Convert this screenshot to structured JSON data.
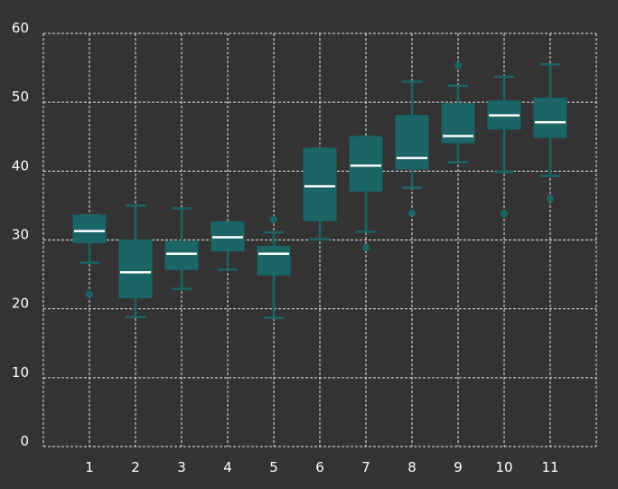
{
  "colors": {
    "background": "#333333",
    "grid": "#e8e8e8",
    "box_fill": "#1b6566",
    "box_stroke": "#1b6566",
    "whisker": "#1b6566",
    "median": "#ffffff",
    "outlier": "#1b6566",
    "text": "#ffffff"
  },
  "chart_data": {
    "type": "boxplot",
    "title": "",
    "xlabel": "",
    "ylabel": "",
    "categories": [
      "1",
      "2",
      "3",
      "4",
      "5",
      "6",
      "7",
      "8",
      "9",
      "10",
      "11"
    ],
    "xlim": [
      0,
      12
    ],
    "ylim": [
      0,
      60
    ],
    "y_ticks": [
      0,
      10,
      20,
      30,
      40,
      50,
      60
    ],
    "grid": true,
    "legend": "none",
    "boxes": [
      {
        "x": "1",
        "whisker_low": 26.7,
        "q1": 29.6,
        "median": 31.3,
        "q3": 33.6,
        "whisker_high": 33.6,
        "outliers": [
          22.1
        ]
      },
      {
        "x": "2",
        "whisker_low": 18.8,
        "q1": 21.6,
        "median": 25.3,
        "q3": 30.0,
        "whisker_high": 35.0,
        "outliers": []
      },
      {
        "x": "3",
        "whisker_low": 22.9,
        "q1": 25.7,
        "median": 28.0,
        "q3": 29.8,
        "whisker_high": 34.6,
        "outliers": []
      },
      {
        "x": "4",
        "whisker_low": 25.7,
        "q1": 28.4,
        "median": 30.4,
        "q3": 32.6,
        "whisker_high": 32.6,
        "outliers": []
      },
      {
        "x": "5",
        "whisker_low": 18.7,
        "q1": 24.9,
        "median": 28.0,
        "q3": 29.1,
        "whisker_high": 31.1,
        "outliers": [
          33.0
        ]
      },
      {
        "x": "6",
        "whisker_low": 30.1,
        "q1": 32.8,
        "median": 37.8,
        "q3": 43.3,
        "whisker_high": 43.3,
        "outliers": []
      },
      {
        "x": "7",
        "whisker_low": 31.2,
        "q1": 37.1,
        "median": 40.8,
        "q3": 45.0,
        "whisker_high": 45.0,
        "outliers": [
          28.9
        ]
      },
      {
        "x": "8",
        "whisker_low": 37.6,
        "q1": 40.3,
        "median": 41.9,
        "q3": 48.1,
        "whisker_high": 53.0,
        "outliers": [
          33.9
        ]
      },
      {
        "x": "9",
        "whisker_low": 41.3,
        "q1": 44.1,
        "median": 45.1,
        "q3": 49.8,
        "whisker_high": 52.4,
        "outliers": [
          55.4
        ]
      },
      {
        "x": "10",
        "whisker_low": 39.9,
        "q1": 46.1,
        "median": 48.1,
        "q3": 50.2,
        "whisker_high": 53.7,
        "outliers": [
          33.8
        ]
      },
      {
        "x": "11",
        "whisker_low": 39.3,
        "q1": 44.9,
        "median": 47.1,
        "q3": 50.6,
        "whisker_high": 55.5,
        "outliers": [
          36.0
        ]
      }
    ]
  }
}
